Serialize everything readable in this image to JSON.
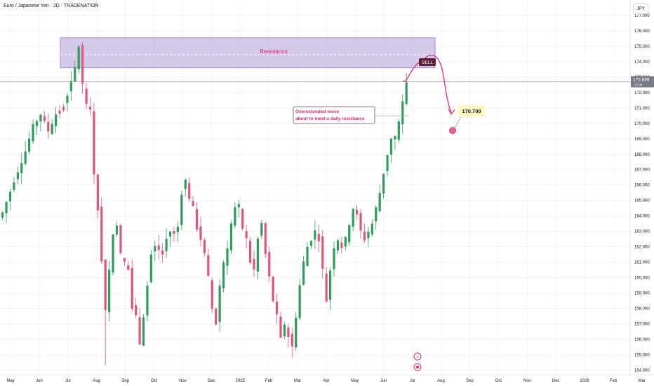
{
  "header": {
    "title": "Euro / Japanese Yen · 2D · TRADENATION",
    "currency": "JPY"
  },
  "annotations": {
    "resistance_label": "Resistance",
    "sell_label": "SELL",
    "note_line1": "Overextended move",
    "note_line2": "about to meet a daily resistance",
    "target_label": "170.700",
    "price_badge_value": "172.699",
    "price_badge_sub": "17:0h"
  },
  "colors": {
    "up": "#26a69a",
    "down": "#ef5350",
    "up_candle": "#2e9c5a",
    "down_candle": "#e2557b",
    "zone_fill": "#b39ddb",
    "annotation": "#e91e63",
    "target_bg": "#fff9c4",
    "price_line": "#8a8fa3"
  },
  "chart_data": {
    "type": "candlestick",
    "title": "Euro / Japanese Yen · 2D · TRADENATION",
    "y_ticks": [
      "177.000",
      "176.000",
      "175.000",
      "174.000",
      "173.000",
      "172.000",
      "171.000",
      "170.000",
      "169.000",
      "168.000",
      "167.000",
      "166.000",
      "165.000",
      "164.000",
      "163.000",
      "162.000",
      "161.000",
      "160.000",
      "159.000",
      "158.000",
      "157.000",
      "156.000",
      "155.000",
      "154.000"
    ],
    "x_ticks": [
      "May",
      "Jun",
      "Jul",
      "Aug",
      "Sep",
      "Oct",
      "Nov",
      "Dec",
      "2025",
      "Feb",
      "Mar",
      "Apr",
      "May",
      "Jun",
      "Jul",
      "Aug",
      "Sep",
      "Oct",
      "Nov",
      "Dec",
      "2026",
      "Feb",
      "Mar"
    ],
    "ylim": [
      153.7,
      178.0
    ],
    "last_price": 172.699,
    "resistance_zone": [
      173.6,
      175.55
    ],
    "resistance_mid": 174.45,
    "target": 170.7,
    "path": [
      [
        0,
        164.2
      ],
      [
        3,
        166.3
      ],
      [
        6,
        168.2
      ],
      [
        8,
        169.8
      ],
      [
        10,
        170.6
      ],
      [
        12,
        169.5
      ],
      [
        14,
        170.6
      ],
      [
        16,
        171.2
      ],
      [
        18,
        172.6
      ],
      [
        19,
        173.6
      ],
      [
        20,
        175.0
      ],
      [
        21,
        172.5
      ],
      [
        22,
        171.3
      ],
      [
        23,
        170.8
      ],
      [
        24,
        166.8
      ],
      [
        25,
        164.5
      ],
      [
        26,
        161.0
      ],
      [
        27,
        158.0
      ],
      [
        28,
        160.5
      ],
      [
        29,
        162.8
      ],
      [
        30,
        163.5
      ],
      [
        31,
        161.5
      ],
      [
        32,
        161.0
      ],
      [
        33,
        160.5
      ],
      [
        34,
        158.0
      ],
      [
        35,
        157.5
      ],
      [
        36,
        155.8
      ],
      [
        37,
        157.5
      ],
      [
        38,
        159.5
      ],
      [
        39,
        161.5
      ],
      [
        40,
        162.0
      ],
      [
        41,
        161.8
      ],
      [
        42,
        161.5
      ],
      [
        43,
        162.5
      ],
      [
        44,
        163.0
      ],
      [
        45,
        162.8
      ],
      [
        46,
        163.3
      ],
      [
        47,
        165.5
      ],
      [
        48,
        166.3
      ],
      [
        49,
        165.2
      ],
      [
        50,
        164.5
      ],
      [
        51,
        163.2
      ],
      [
        52,
        162.5
      ],
      [
        53,
        161.5
      ],
      [
        54,
        160.0
      ],
      [
        55,
        158.0
      ],
      [
        56,
        157.0
      ],
      [
        57,
        159.5
      ],
      [
        58,
        161.0
      ],
      [
        59,
        162.0
      ],
      [
        60,
        163.5
      ],
      [
        61,
        164.5
      ],
      [
        62,
        164.3
      ],
      [
        63,
        163.2
      ],
      [
        64,
        162.5
      ],
      [
        65,
        161.0
      ],
      [
        66,
        160.5
      ],
      [
        67,
        162.5
      ],
      [
        68,
        163.5
      ],
      [
        69,
        161.5
      ],
      [
        70,
        160.0
      ],
      [
        71,
        158.5
      ],
      [
        72,
        157.5
      ],
      [
        73,
        156.0
      ],
      [
        74,
        157.0
      ],
      [
        75,
        156.2
      ],
      [
        76,
        155.5
      ],
      [
        77,
        157.5
      ],
      [
        78,
        159.5
      ],
      [
        79,
        161.0
      ],
      [
        80,
        162.0
      ],
      [
        81,
        162.5
      ],
      [
        82,
        163.0
      ],
      [
        83,
        162.5
      ],
      [
        84,
        160.5
      ],
      [
        85,
        158.5
      ],
      [
        86,
        160.5
      ],
      [
        87,
        162.0
      ],
      [
        88,
        162.5
      ],
      [
        89,
        162.0
      ],
      [
        90,
        162.5
      ],
      [
        91,
        163.5
      ],
      [
        92,
        164.5
      ],
      [
        93,
        164.0
      ],
      [
        94,
        163.0
      ],
      [
        95,
        162.5
      ],
      [
        96,
        163.0
      ],
      [
        97,
        163.5
      ],
      [
        98,
        164.5
      ],
      [
        99,
        165.5
      ],
      [
        100,
        166.8
      ],
      [
        101,
        168.0
      ],
      [
        102,
        169.0
      ],
      [
        103,
        168.8
      ],
      [
        104,
        170.0
      ],
      [
        105,
        171.3
      ],
      [
        106,
        172.7
      ]
    ]
  }
}
